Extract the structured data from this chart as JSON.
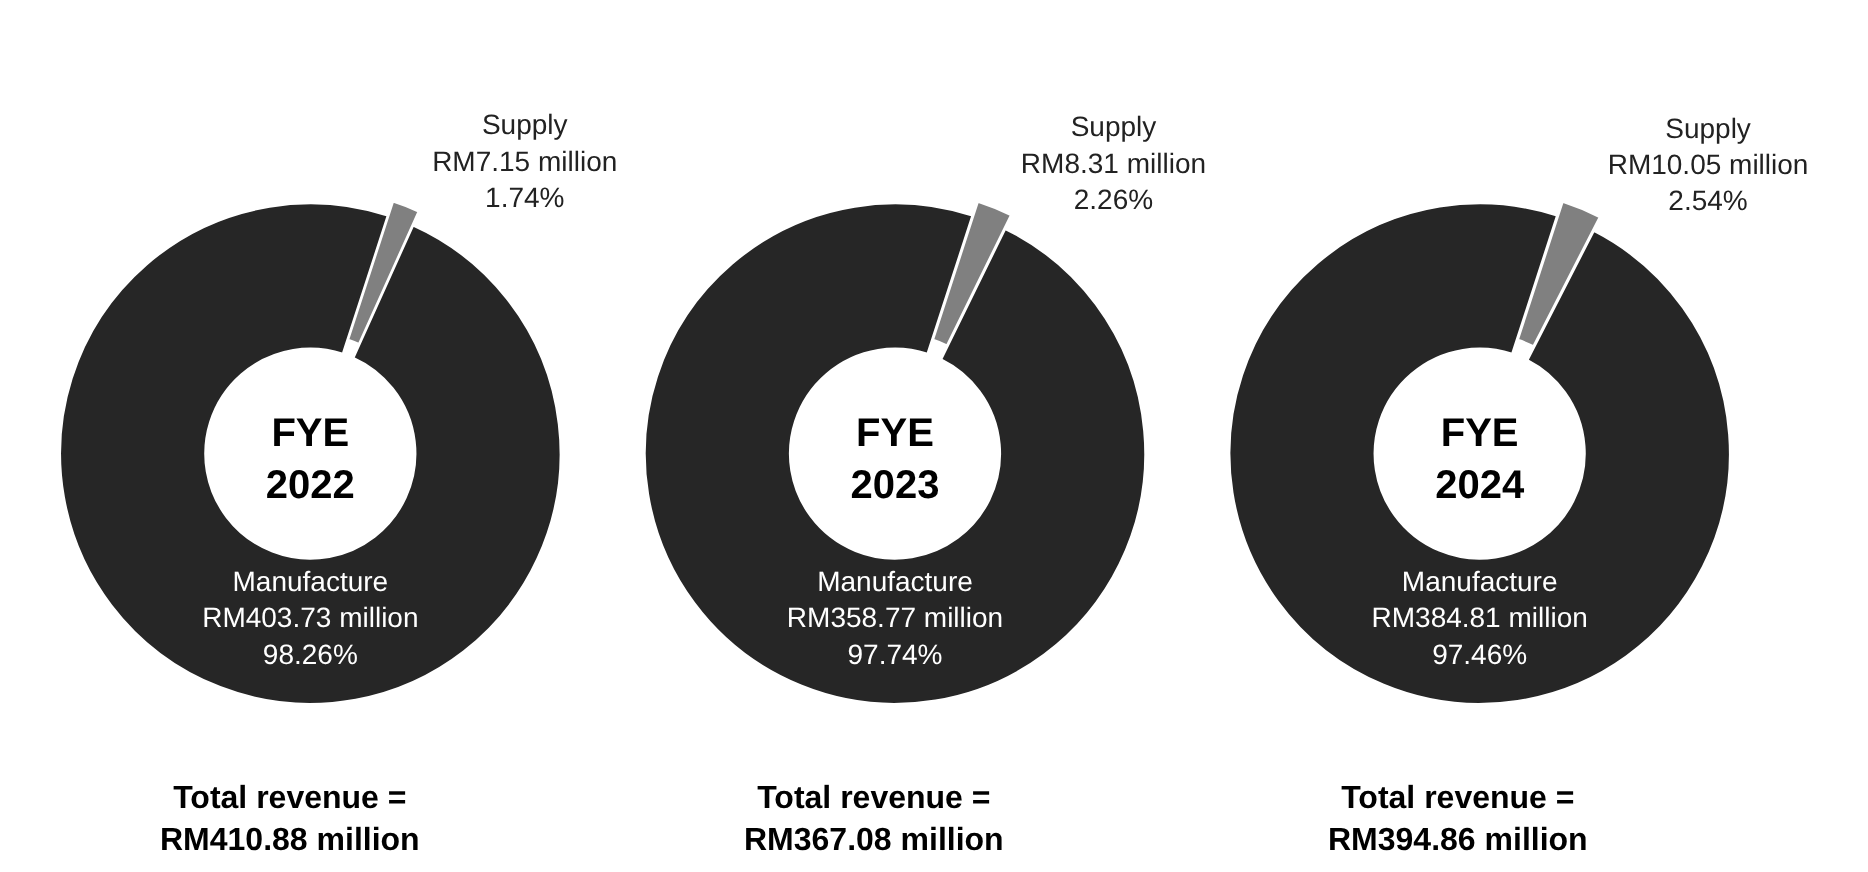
{
  "chart_data": [
    {
      "type": "donut",
      "title": "FYE\n2022",
      "categories": [
        "Supply",
        "Manufacture"
      ],
      "values": [
        1.74,
        98.26
      ],
      "colors": [
        "#808080",
        "#262626"
      ],
      "value_labels": [
        "RM7.15 million\n1.74%",
        "RM403.73 million\n98.26%"
      ],
      "annotations": [
        "Total revenue =\nRM410.88 million"
      ]
    },
    {
      "type": "donut",
      "title": "FYE\n2023",
      "categories": [
        "Supply",
        "Manufacture"
      ],
      "values": [
        2.26,
        97.74
      ],
      "colors": [
        "#808080",
        "#262626"
      ],
      "value_labels": [
        "RM8.31 million\n2.26%",
        "RM358.77 million\n97.74%"
      ],
      "annotations": [
        "Total revenue =\nRM367.08 million"
      ]
    },
    {
      "type": "donut",
      "title": "FYE\n2024",
      "categories": [
        "Supply",
        "Manufacture"
      ],
      "values": [
        2.54,
        97.46
      ],
      "colors": [
        "#808080",
        "#262626"
      ],
      "value_labels": [
        "RM10.05 million\n2.54%",
        "RM384.81 million\n97.46%"
      ],
      "annotations": [
        "Total revenue =\nRM394.86 million"
      ]
    }
  ]
}
